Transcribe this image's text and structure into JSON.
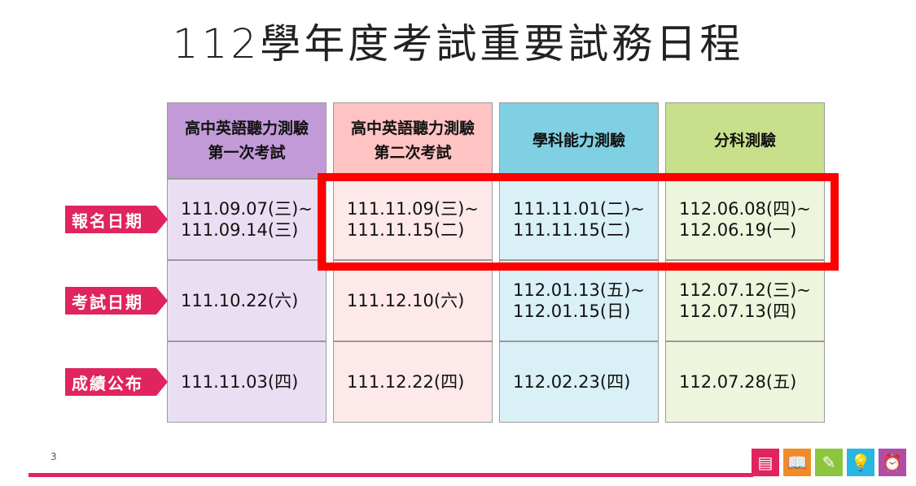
{
  "title": "112學年度考試重要試務日程",
  "row_labels": [
    "報名日期",
    "考試日期",
    "成績公布"
  ],
  "columns": [
    {
      "header": "高中英語聽力測驗\n第一次考試",
      "cells": [
        "111.09.07(三)~\n111.09.14(三)",
        "111.10.22(六)",
        "111.11.03(四)"
      ],
      "header_color": "#c39ad8",
      "body_color": "#eadff2"
    },
    {
      "header": "高中英語聽力測驗\n第二次考試",
      "cells": [
        "111.11.09(三)~\n111.11.15(二)",
        "111.12.10(六)",
        "111.12.22(四)"
      ],
      "header_color": "#ffc3c3",
      "body_color": "#fde9e9"
    },
    {
      "header": "學科能力測驗",
      "cells": [
        "111.11.01(二)~\n111.11.15(二)",
        "112.01.13(五)~\n112.01.15(日)",
        "112.02.23(四)"
      ],
      "header_color": "#80d0e3",
      "body_color": "#d9f0f6"
    },
    {
      "header": "分科測驗",
      "cells": [
        "112.06.08(四)~\n112.06.19(一)",
        "112.07.12(三)~\n112.07.13(四)",
        "112.07.28(五)"
      ],
      "header_color": "#c8e08c",
      "body_color": "#eef5dd"
    }
  ],
  "highlight_color": "#ff0000",
  "label_color": "#e0245e",
  "page_number": "3",
  "footer_icons": [
    {
      "name": "ticket-icon",
      "color": "#e0245e",
      "glyph": "▤"
    },
    {
      "name": "book-icon",
      "color": "#f08c28",
      "glyph": "📖"
    },
    {
      "name": "pencil-icon",
      "color": "#8cc63f",
      "glyph": "✎"
    },
    {
      "name": "lightbulb-icon",
      "color": "#29b6e0",
      "glyph": "💡"
    },
    {
      "name": "alarm-clock-icon",
      "color": "#b04ea6",
      "glyph": "⏰"
    }
  ]
}
